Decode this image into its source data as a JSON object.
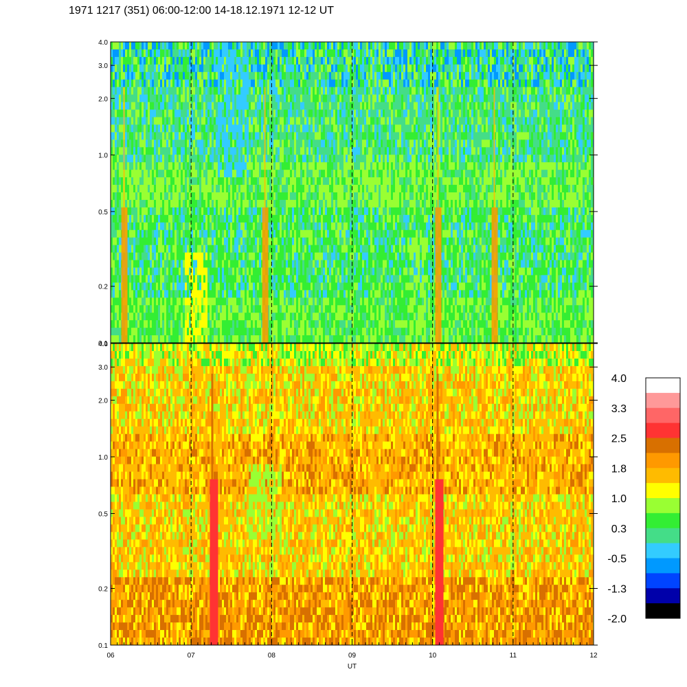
{
  "title": "1971 1217 (351) 06:00-12:00 14-18.12.1971  12-12 UT",
  "chart_data": [
    {
      "type": "heatmap",
      "panel": "upper",
      "x_ticks": [
        "06",
        "07",
        "08",
        "09",
        "10",
        "11",
        "12"
      ],
      "x_range": [
        6,
        12
      ],
      "y_scale": "log",
      "y_range": [
        0.1,
        4.0
      ],
      "y_ticks": [
        {
          "value": 4.0,
          "label": "4.0"
        },
        {
          "value": 3.0,
          "label": "3.0"
        },
        {
          "value": 2.0,
          "label": "2.0"
        },
        {
          "value": 1.0,
          "label": "1.0"
        },
        {
          "value": 0.5,
          "label": "0.5"
        },
        {
          "value": 0.2,
          "label": "0.2"
        },
        {
          "value": 0.1,
          "label": "0.1"
        }
      ],
      "vertical_dashed_lines_at": [
        7,
        8,
        9,
        10,
        11
      ],
      "dominant_levels": "green / light green / yellow-green (about 0.0 to 1.0), blue-teal streaks near 07-08 and at top",
      "bright_streaks_at": [
        6.15,
        7.9,
        10.05,
        10.75
      ]
    },
    {
      "type": "heatmap",
      "panel": "lower",
      "x_ticks": [
        "06",
        "07",
        "08",
        "09",
        "10",
        "11",
        "12"
      ],
      "x_range": [
        6,
        12
      ],
      "y_scale": "log",
      "y_range": [
        0.1,
        4.0
      ],
      "y_ticks": [
        {
          "value": 4.0,
          "label": "4.0"
        },
        {
          "value": 3.0,
          "label": "3.0"
        },
        {
          "value": 2.0,
          "label": "2.0"
        },
        {
          "value": 1.0,
          "label": "1.0"
        },
        {
          "value": 0.5,
          "label": "0.5"
        },
        {
          "value": 0.2,
          "label": "0.2"
        },
        {
          "value": 0.1,
          "label": "0.1"
        }
      ],
      "xlabel": "UT",
      "vertical_dashed_lines_at": [
        7,
        8,
        9,
        10,
        11
      ],
      "dominant_levels": "orange / amber / yellow (about 1.0 to 2.3), red streak near 10:05 at low frequencies",
      "bright_streaks_at": [
        7.25,
        10.05
      ]
    }
  ],
  "colorbar": {
    "labels": [
      "4.0",
      "3.3",
      "2.5",
      "1.8",
      "1.0",
      "0.3",
      "-0.5",
      "-1.3",
      "-2.0"
    ],
    "colors_top_to_bottom": [
      "#ffffff",
      "#ff9999",
      "#ff6666",
      "#ff3333",
      "#d87000",
      "#ff9900",
      "#ffbb00",
      "#ffff00",
      "#99ff33",
      "#33ee33",
      "#44dd88",
      "#33ccff",
      "#0099ff",
      "#0044ff",
      "#0000aa",
      "#000000"
    ]
  }
}
